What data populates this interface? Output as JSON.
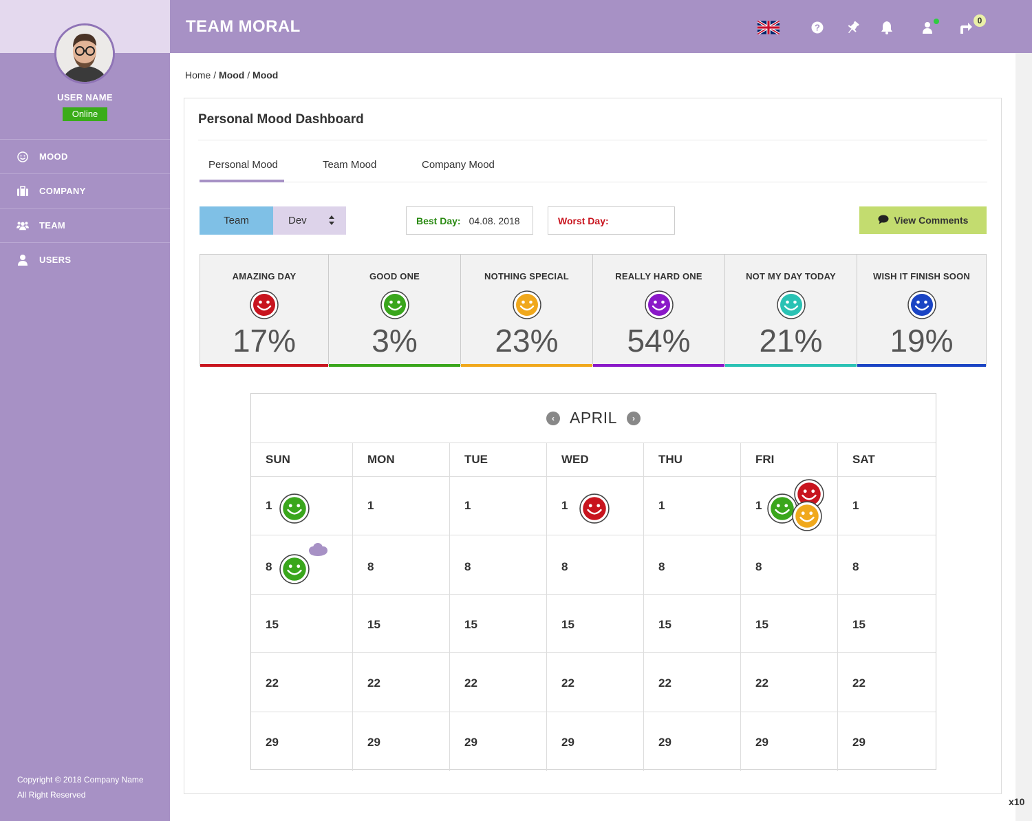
{
  "app": {
    "title": "TEAM MORAL",
    "badge_count": "0",
    "zoom": "x10"
  },
  "user": {
    "name": "USER NAME",
    "status": "Online"
  },
  "sidebar": {
    "items": [
      {
        "label": "MOOD",
        "icon": "smile-icon"
      },
      {
        "label": "COMPANY",
        "icon": "briefcase-icon"
      },
      {
        "label": "TEAM",
        "icon": "group-icon"
      },
      {
        "label": "USERS",
        "icon": "user-icon"
      }
    ],
    "copyright_line1": "Copyright © 2018 Company Name",
    "copyright_line2": "All Right Reserved"
  },
  "header_icons": [
    "uk-flag-icon",
    "help-icon",
    "pin-icon",
    "bell-icon",
    "user-icon",
    "share-icon"
  ],
  "breadcrumb": {
    "home": "Home",
    "sep": " / ",
    "level1": "Mood",
    "level2": "Mood"
  },
  "panel": {
    "title": "Personal Mood Dashboard"
  },
  "tabs": [
    "Personal Mood",
    "Team Mood",
    "Company Mood"
  ],
  "filters": {
    "segment_team": "Team",
    "segment_dev": "Dev",
    "best_label": "Best Day:",
    "best_value": "04.08. 2018",
    "worst_label": "Worst Day:",
    "worst_value": "",
    "view_comments": "View Comments"
  },
  "moods": [
    {
      "label": "AMAZING DAY",
      "percent": "17%",
      "color": "#c8141e"
    },
    {
      "label": "GOOD ONE",
      "percent": "3%",
      "color": "#3aa61c"
    },
    {
      "label": "NOTHING SPECIAL",
      "percent": "23%",
      "color": "#f0a81c"
    },
    {
      "label": "REALLY HARD ONE",
      "percent": "54%",
      "color": "#8a18c8"
    },
    {
      "label": "NOT MY DAY TODAY",
      "percent": "21%",
      "color": "#2ac2b4"
    },
    {
      "label": "WISH IT FINISH SOON",
      "percent": "19%",
      "color": "#1a44c4"
    }
  ],
  "calendar": {
    "month": "APRIL",
    "weekdays": [
      "SUN",
      "MON",
      "TUE",
      "WED",
      "THU",
      "FRI",
      "SAT"
    ],
    "weeks": [
      [
        "1",
        "1",
        "1",
        "1",
        "1",
        "1",
        "1"
      ],
      [
        "8",
        "8",
        "8",
        "8",
        "8",
        "8",
        "8"
      ],
      [
        "15",
        "15",
        "15",
        "15",
        "15",
        "15",
        "15"
      ],
      [
        "22",
        "22",
        "22",
        "22",
        "22",
        "22",
        "22"
      ],
      [
        "29",
        "29",
        "29",
        "29",
        "29",
        "29",
        "29"
      ]
    ]
  }
}
